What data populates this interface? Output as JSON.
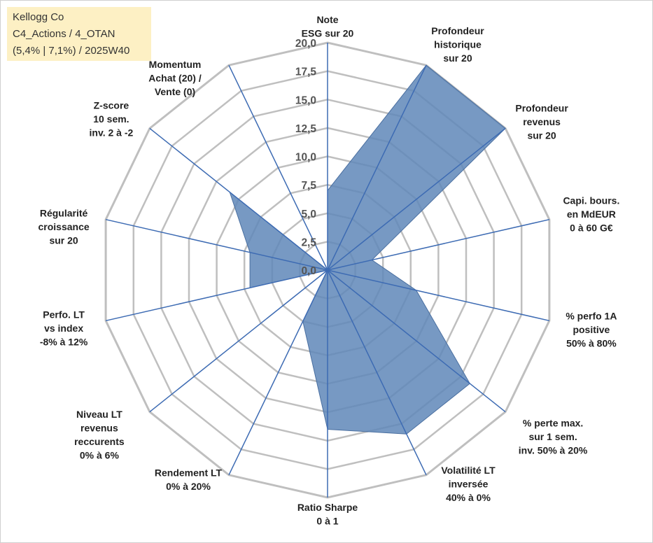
{
  "title_box": {
    "line1": "Kellogg Co",
    "line2": "C4_Actions / 4_OTAN",
    "line3": "(5,4% | 7,1%) / 2025W40"
  },
  "chart_data": {
    "type": "radar",
    "max": 20,
    "rings": [
      0,
      2.5,
      5,
      7.5,
      10,
      12.5,
      15,
      17.5,
      20
    ],
    "tick_labels": [
      "0,0",
      "2,5",
      "5,0",
      "7,5",
      "10,0",
      "12,5",
      "15,0",
      "17,5",
      "20,0"
    ],
    "axes": [
      {
        "label": [
          "Note",
          "ESG sur 20"
        ],
        "value": 7.0
      },
      {
        "label": [
          "Profondeur",
          "historique",
          "sur 20"
        ],
        "value": 20.0
      },
      {
        "label": [
          "Profondeur",
          "revenus",
          "sur 20"
        ],
        "value": 20.0
      },
      {
        "label": [
          "Capi. bours.",
          "en MdEUR",
          "0 à 60 G€"
        ],
        "value": 4.0
      },
      {
        "label": [
          "% perfo 1A",
          "positive",
          "50% à 80%"
        ],
        "value": 8.0
      },
      {
        "label": [
          "% perte max.",
          "sur 1 sem.",
          "inv. 50% à 20%"
        ],
        "value": 16.0
      },
      {
        "label": [
          "Volatilité LT",
          "inversée",
          "40% à 0%"
        ],
        "value": 16.0
      },
      {
        "label": [
          "Ratio Sharpe",
          "0 à 1"
        ],
        "value": 14.0
      },
      {
        "label": [
          "Rendement LT",
          "0% à 20%"
        ],
        "value": 5.0
      },
      {
        "label": [
          "Niveau LT",
          "revenus",
          "reccurents",
          "0% à 6%"
        ],
        "value": 0.0
      },
      {
        "label": [
          "Perfo. LT",
          "vs index",
          "-8% à 12%"
        ],
        "value": 7.0
      },
      {
        "label": [
          "Régularité",
          "croissance",
          "sur 20"
        ],
        "value": 7.0
      },
      {
        "label": [
          "Z-score",
          "10 sem.",
          "inv. 2 à -2"
        ],
        "value": 11.0
      },
      {
        "label": [
          "Momentum",
          "Achat (20) /",
          "Vente (0)"
        ],
        "value": 0.0
      }
    ],
    "fill_color": "#5f87b8",
    "axis_color": "#3d6bb3",
    "grid_color": "#bfbfbf"
  }
}
